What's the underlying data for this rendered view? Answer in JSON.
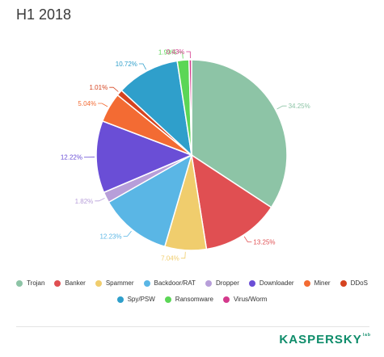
{
  "title": "H1 2018",
  "brand": {
    "name": "KASPERSKY",
    "suffix": "lab"
  },
  "chart_data": {
    "type": "pie",
    "slices": [
      {
        "label": "Trojan",
        "value": 34.25,
        "value_label": "34.25%",
        "color": "#8dc4a6"
      },
      {
        "label": "Banker",
        "value": 13.25,
        "value_label": "13.25%",
        "color": "#e04f52"
      },
      {
        "label": "Spammer",
        "value": 7.04,
        "value_label": "7.04%",
        "color": "#f0cd6d"
      },
      {
        "label": "Backdoor/RAT",
        "value": 12.23,
        "value_label": "12.23%",
        "color": "#5ab6e5"
      },
      {
        "label": "Dropper",
        "value": 1.82,
        "value_label": "1.82%",
        "color": "#b79ed9"
      },
      {
        "label": "Downloader",
        "value": 12.22,
        "value_label": "12.22%",
        "color": "#6a4ed6"
      },
      {
        "label": "Miner",
        "value": 5.04,
        "value_label": "5.04%",
        "color": "#f36b33"
      },
      {
        "label": "DDoS",
        "value": 1.01,
        "value_label": "1.01%",
        "color": "#d5431f"
      },
      {
        "label": "Spy/PSW",
        "value": 10.72,
        "value_label": "10.72%",
        "color": "#2f9fcb"
      },
      {
        "label": "Ransomware",
        "value": 1.99,
        "value_label": "1.99%",
        "color": "#5bd656"
      },
      {
        "label": "Virus/Worm",
        "value": 0.43,
        "value_label": "0.43%",
        "color": "#d43a8c"
      }
    ],
    "legend_position": "bottom"
  }
}
